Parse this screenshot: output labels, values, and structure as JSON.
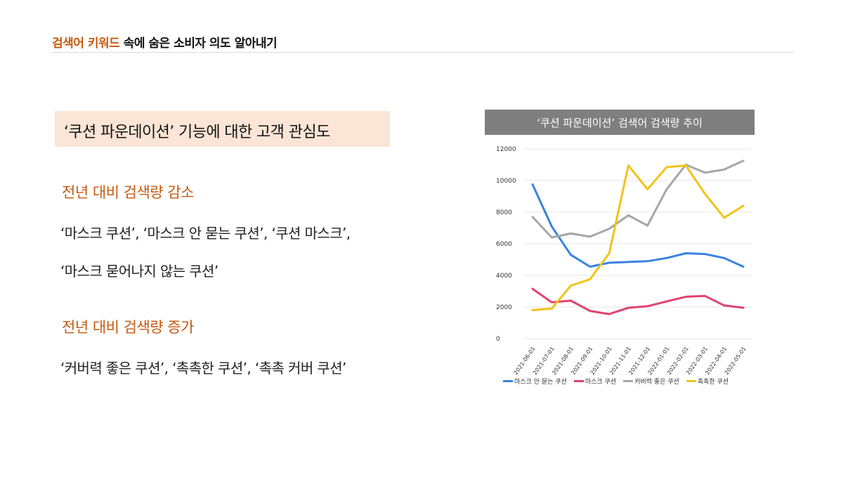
{
  "header": {
    "accent": "검색어 키워드",
    "rest": " 속에 숨은 소비자 의도 알아내기"
  },
  "subtitle": "‘쿠션 파운데이션’ 기능에 대한 고객 관심도",
  "decrease": {
    "heading": "전년 대비 검색량 감소",
    "line1": "‘마스크 쿠션’, ‘마스크 안 묻는 쿠션’, ‘쿠션 마스크’,",
    "line2": "‘마스크 묻어나지 않는 쿠션’"
  },
  "increase": {
    "heading": "전년 대비 검색량 증가",
    "line1": "‘커버력 좋은 쿠션’, ‘촉촉한 쿠션’, ‘촉촉 커버 쿠션’"
  },
  "colors": {
    "accent": "#c65a11",
    "box": "#fbe5d6",
    "chart_title_bg": "#7f7f7f"
  },
  "chart_data": {
    "type": "line",
    "title": "‘쿠션 파운데이션’ 검색어 검색량 추이",
    "ylim": [
      0,
      12000
    ],
    "yticks": [
      "0",
      "2000",
      "4000",
      "6000",
      "8000",
      "10000",
      "12000"
    ],
    "categories": [
      "2021-06-01",
      "2021-07-01",
      "2021-08-01",
      "2021-09-01",
      "2021-10-01",
      "2021-11-01",
      "2021-12-01",
      "2022-01-01",
      "2022-02-01",
      "2022-03-01",
      "2022-04-01",
      "2022-05-01"
    ],
    "grid": true,
    "legend": "bottom",
    "series": [
      {
        "name": "마스크 안 묻는 쿠션",
        "color": "#3b82e0",
        "values": [
          9750,
          7100,
          5300,
          4550,
          4800,
          4850,
          4900,
          5100,
          5400,
          5350,
          5100,
          4550
        ]
      },
      {
        "name": "마스크 쿠션",
        "color": "#e0426e",
        "values": [
          3150,
          2300,
          2400,
          1750,
          1550,
          1950,
          2050,
          2350,
          2650,
          2700,
          2100,
          1950
        ]
      },
      {
        "name": "커버력 좋은 쿠션",
        "color": "#a6a6a6",
        "values": [
          7700,
          6400,
          6650,
          6450,
          6950,
          7800,
          7150,
          9450,
          11000,
          10500,
          10700,
          11250
        ]
      },
      {
        "name": "촉촉한 쿠션",
        "color": "#f2c31b",
        "values": [
          1800,
          1900,
          3350,
          3750,
          5400,
          10950,
          9450,
          10850,
          10950,
          9150,
          7650,
          8400
        ]
      }
    ]
  }
}
